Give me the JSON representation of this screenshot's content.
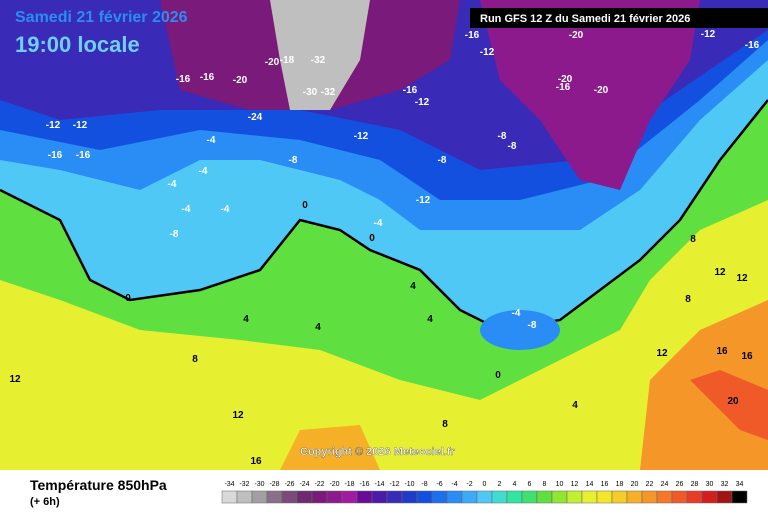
{
  "header": {
    "date": "Samedi 21 février 2026",
    "time": "19:00 locale",
    "run": "Run GFS 12 Z du Samedi 21 février 2026"
  },
  "copyright": "Copyright © 2026 Meteociel.fr",
  "footer": {
    "title": "Température 850hPa",
    "lead": "(+ 6h)"
  },
  "legend": {
    "values": [
      -34,
      -32,
      -30,
      -28,
      -26,
      -24,
      -22,
      -20,
      -18,
      -16,
      -14,
      -12,
      -10,
      -8,
      -6,
      -4,
      -2,
      0,
      2,
      4,
      6,
      8,
      10,
      12,
      14,
      16,
      18,
      20,
      22,
      24,
      26,
      28,
      30,
      32,
      34
    ],
    "colors": [
      "#d9d9d9",
      "#bfbfbf",
      "#a0a0a0",
      "#8a6e8a",
      "#7a4a7a",
      "#6e2a6e",
      "#7a1a7a",
      "#8c1a8c",
      "#a21aa2",
      "#6a0a9a",
      "#4a1aa8",
      "#3a2ab8",
      "#1e3cc8",
      "#1450e0",
      "#1e6ef0",
      "#2a8cf5",
      "#3caaf5",
      "#50c8f5",
      "#40dcd0",
      "#30e6a0",
      "#40e070",
      "#60e040",
      "#90e630",
      "#c0f030",
      "#e6f030",
      "#f5e628",
      "#f5cc28",
      "#f5b028",
      "#f59628",
      "#f57828",
      "#f05a28",
      "#e63c28",
      "#d21e1e",
      "#a01414",
      "#000000"
    ]
  },
  "map": {
    "contour_labels": [
      -16,
      -16,
      -20,
      -20,
      -18,
      -32,
      -30,
      -32,
      -24,
      -16,
      -12,
      -16,
      -12,
      -20,
      -20,
      -16,
      -20,
      -12,
      -16,
      -12,
      -12,
      -16,
      -16,
      -12,
      -8,
      -8,
      -8,
      -12,
      -4,
      -4,
      -8,
      -4,
      -4,
      -4,
      0,
      -8,
      -4,
      0,
      4,
      4,
      4,
      8,
      8,
      12,
      12,
      16,
      16,
      20,
      12,
      4,
      -4,
      -8,
      0,
      8,
      12,
      12,
      16,
      8,
      4,
      0
    ]
  }
}
